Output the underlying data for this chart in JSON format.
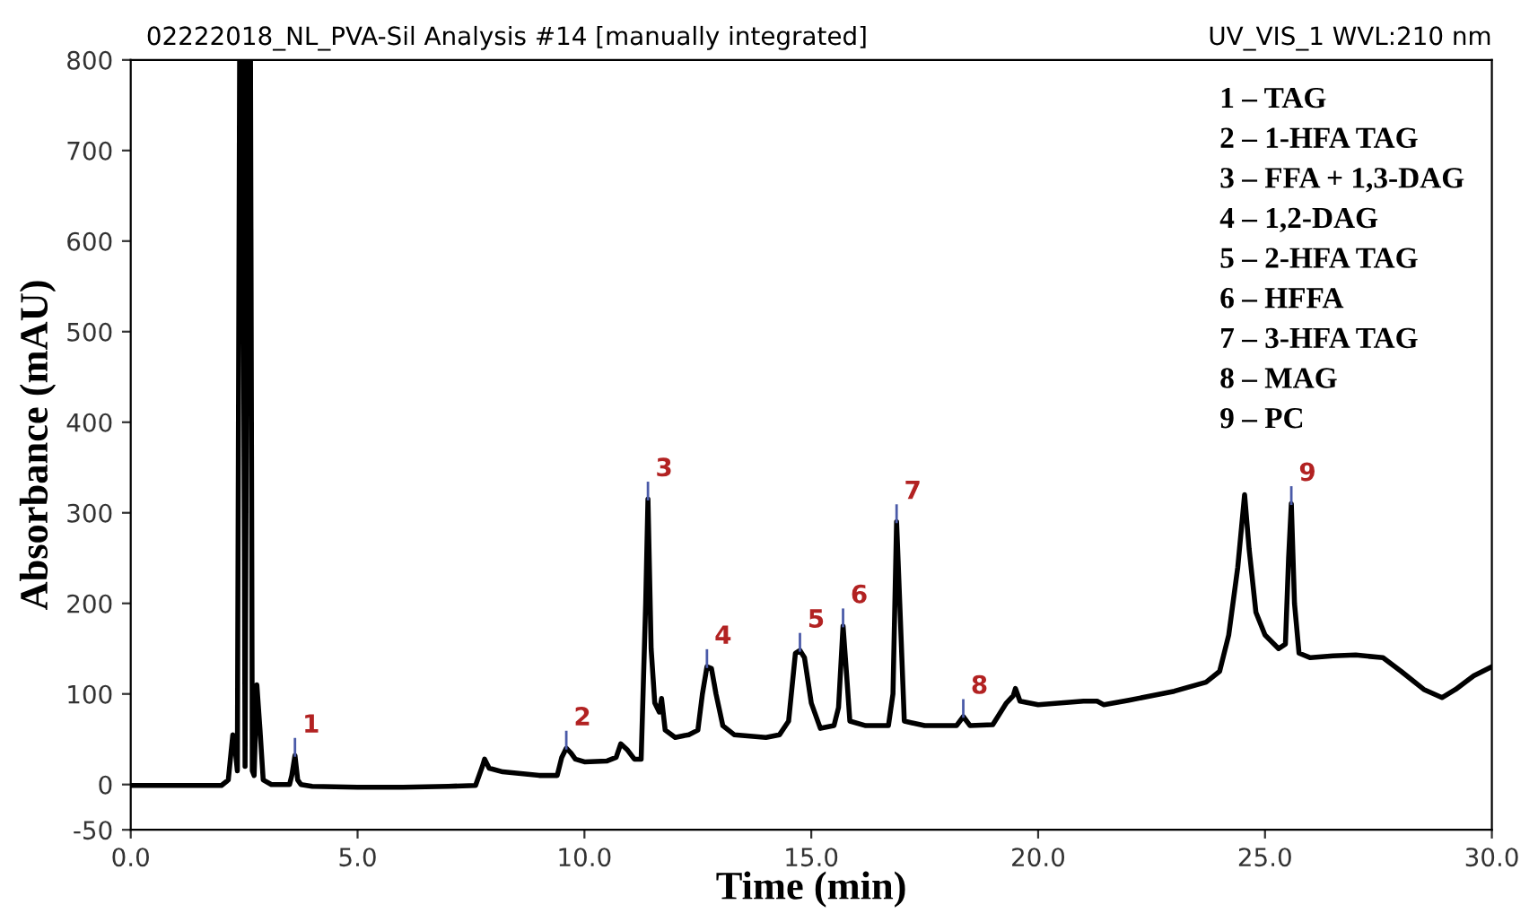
{
  "chart_data": {
    "type": "line",
    "title": "02222018_NL_PVA-Sil Analysis #14 [manually integrated]",
    "subtitle": "UV_VIS_1 WVL:210 nm",
    "xlabel": "Time (min)",
    "ylabel": "Absorbance (mAU)",
    "x": [
      0,
      2.0,
      2.15,
      2.25,
      2.3,
      2.35,
      2.4,
      2.47,
      2.52,
      2.58,
      2.64,
      2.68,
      2.72,
      2.78,
      2.85,
      2.92,
      3.1,
      3.5,
      3.55,
      3.62,
      3.68,
      3.75,
      4.0,
      5.0,
      6.0,
      7.0,
      7.6,
      7.75,
      7.8,
      7.9,
      8.2,
      9.0,
      9.4,
      9.5,
      9.6,
      9.7,
      9.8,
      10.0,
      10.5,
      10.7,
      10.8,
      10.95,
      11.1,
      11.25,
      11.35,
      11.4,
      11.47,
      11.55,
      11.65,
      11.7,
      11.78,
      12.0,
      12.3,
      12.5,
      12.6,
      12.7,
      12.8,
      12.9,
      13.05,
      13.3,
      14.0,
      14.3,
      14.5,
      14.65,
      14.75,
      14.85,
      15.0,
      15.2,
      15.5,
      15.6,
      15.7,
      15.78,
      15.85,
      16.2,
      16.7,
      16.8,
      16.88,
      16.95,
      17.05,
      17.5,
      18.2,
      18.35,
      18.5,
      19.0,
      19.3,
      19.45,
      19.5,
      19.6,
      20.0,
      20.5,
      21.0,
      21.3,
      21.45,
      22.0,
      23.0,
      23.7,
      24.0,
      24.2,
      24.4,
      24.55,
      24.65,
      24.8,
      25.0,
      25.3,
      25.45,
      25.52,
      25.58,
      25.65,
      25.75,
      26.0,
      26.5,
      27.0,
      27.6,
      28.0,
      28.5,
      28.9,
      29.2,
      29.6,
      30.0
    ],
    "series": [
      {
        "color": "#000000",
        "values": [
          -1,
          -1,
          5,
          55,
          40,
          15,
          800,
          800,
          20,
          800,
          800,
          15,
          10,
          110,
          60,
          5,
          0,
          0,
          10,
          32,
          5,
          0,
          -2,
          -3,
          -3,
          -2,
          -1,
          20,
          28,
          18,
          14,
          10,
          10,
          30,
          40,
          35,
          28,
          25,
          26,
          30,
          45,
          38,
          28,
          28,
          200,
          315,
          150,
          90,
          80,
          95,
          60,
          52,
          55,
          60,
          100,
          130,
          128,
          100,
          65,
          55,
          52,
          55,
          70,
          145,
          148,
          140,
          90,
          62,
          65,
          85,
          175,
          120,
          70,
          65,
          65,
          100,
          290,
          200,
          70,
          65,
          65,
          75,
          65,
          66,
          90,
          98,
          106,
          92,
          88,
          90,
          92,
          92,
          88,
          93,
          103,
          113,
          125,
          165,
          240,
          320,
          260,
          190,
          165,
          150,
          155,
          250,
          310,
          200,
          145,
          140,
          142,
          143,
          140,
          125,
          105,
          96,
          105,
          120,
          130
        ]
      }
    ],
    "xlim": [
      0,
      30
    ],
    "ylim": [
      -50,
      800
    ],
    "xticks": [
      {
        "value": 0,
        "label": "0.0"
      },
      {
        "value": 5,
        "label": "5.0"
      },
      {
        "value": 10,
        "label": "10.0"
      },
      {
        "value": 15,
        "label": "15.0"
      },
      {
        "value": 20,
        "label": "20.0"
      },
      {
        "value": 25,
        "label": "25.0"
      },
      {
        "value": 30,
        "label": "30.0"
      }
    ],
    "yticks": [
      -50,
      0,
      100,
      200,
      300,
      400,
      500,
      600,
      700,
      800
    ],
    "grid": false,
    "marker": "none",
    "line_style": "solid",
    "annotations": [
      {
        "text": "1",
        "x": 3.62,
        "y": 32
      },
      {
        "text": "2",
        "x": 9.6,
        "y": 40
      },
      {
        "text": "3",
        "x": 11.4,
        "y": 315
      },
      {
        "text": "4",
        "x": 12.7,
        "y": 130
      },
      {
        "text": "5",
        "x": 14.75,
        "y": 148
      },
      {
        "text": "6",
        "x": 15.7,
        "y": 175
      },
      {
        "text": "7",
        "x": 16.88,
        "y": 290
      },
      {
        "text": "8",
        "x": 18.35,
        "y": 75
      },
      {
        "text": "9",
        "x": 25.58,
        "y": 310
      },
      "1 – TAG",
      "2 – 1-HFA TAG",
      "3 – FFA + 1,3-DAG",
      "4 – 1,2-DAG",
      "5 – 2-HFA TAG",
      "6 – HFFA",
      "7 – 3-HFA TAG",
      "8 – MAG",
      "9 – PC"
    ]
  }
}
